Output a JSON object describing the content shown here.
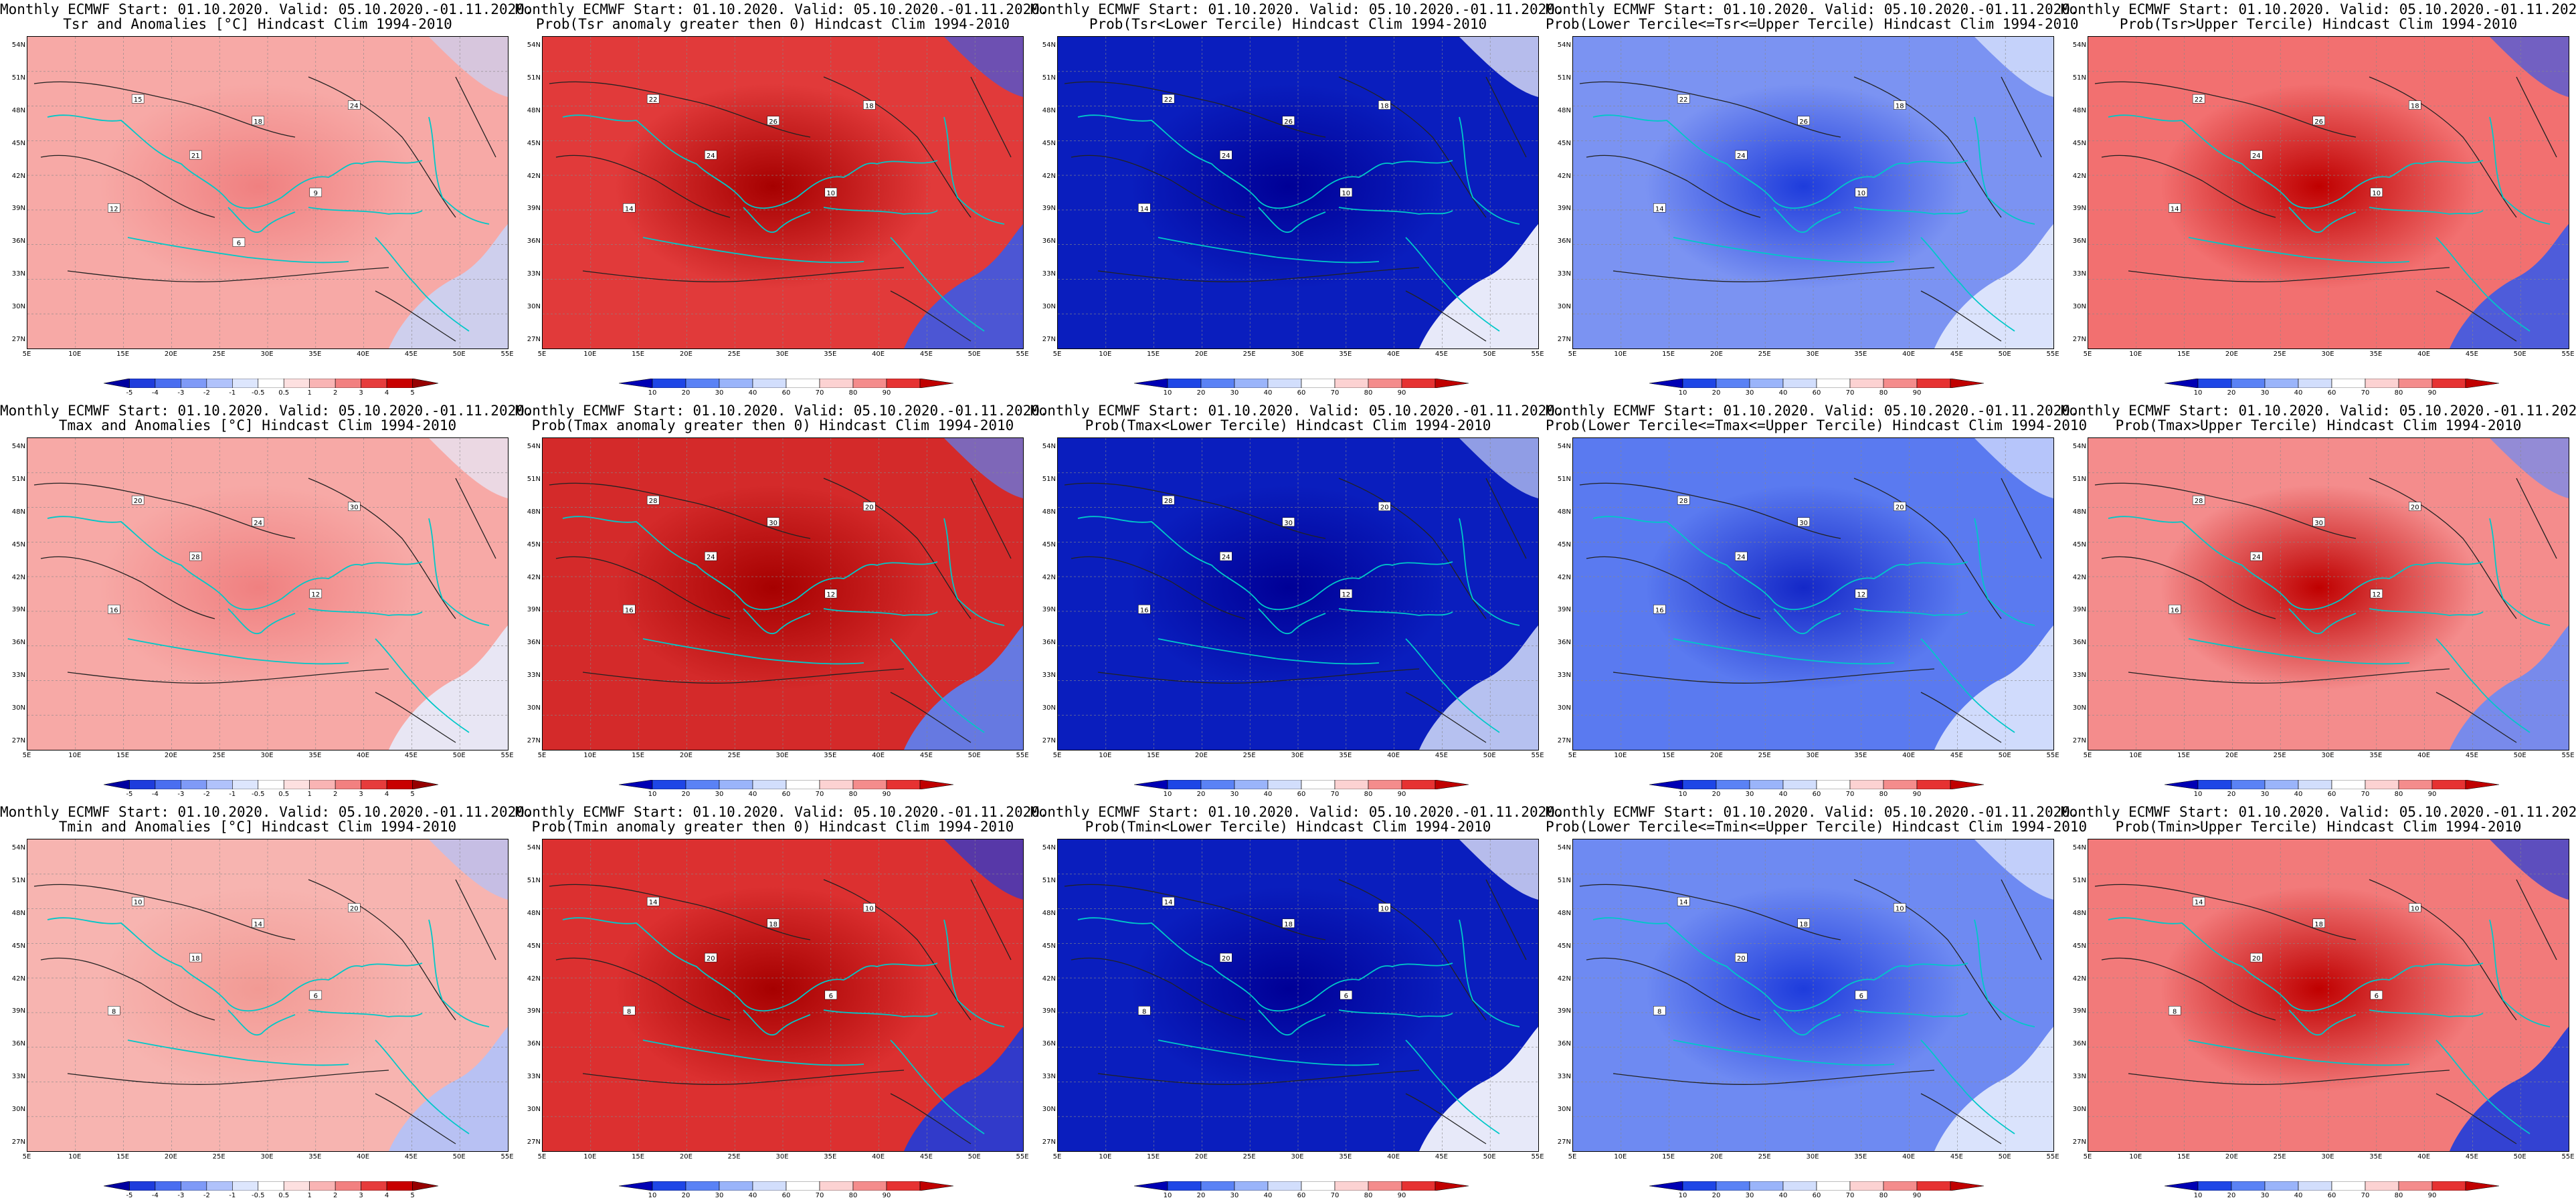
{
  "header_line": "Monthly ECMWF Start: 01.10.2020. Valid: 05.10.2020.-01.11.2020.",
  "lat_labels": [
    "54N",
    "51N",
    "48N",
    "45N",
    "42N",
    "39N",
    "36N",
    "33N",
    "30N",
    "27N"
  ],
  "lon_labels": [
    "5E",
    "10E",
    "15E",
    "20E",
    "25E",
    "30E",
    "35E",
    "40E",
    "45E",
    "50E",
    "55E"
  ],
  "anomaly_scale": {
    "labels": [
      "-5",
      "-4",
      "-3",
      "-2",
      "-1",
      "-0.5",
      "0.5",
      "1",
      "2",
      "3",
      "4",
      "5"
    ],
    "colors": [
      "#0000a0",
      "#1e3cdc",
      "#4a6ef0",
      "#7f9af7",
      "#b0c2fb",
      "#dde6fd",
      "#ffffff",
      "#fde0e0",
      "#f9b4b4",
      "#f28080",
      "#e63c3c",
      "#c80000",
      "#960000"
    ]
  },
  "prob_scale": {
    "labels": [
      "10",
      "20",
      "30",
      "40",
      "60",
      "70",
      "80",
      "90"
    ],
    "colors": [
      "#0000b4",
      "#1e46e6",
      "#5a82f5",
      "#9ab4fa",
      "#d2defc",
      "#ffffff",
      "#fcd2d2",
      "#f48c8c",
      "#e63232",
      "#c00000"
    ]
  },
  "rows": [
    {
      "variable": "Tsr",
      "panels": [
        {
          "title": "Tsr and Anomalies [°C] Hindcast Clim 1994-2010",
          "type": "anomaly",
          "base_color": "#f7a9a6",
          "warm_core_color": "#f08080",
          "cold_edge_color": "#c9d3f5",
          "labels": [
            "15",
            "18",
            "21",
            "24",
            "12",
            "9",
            "6"
          ]
        },
        {
          "title": "Prob(Tsr anomaly greater then 0) Hindcast Clim 1994-2010",
          "type": "prob",
          "base_color": "#e13a3a",
          "warm_core_color": "#a60000",
          "cold_edge_color": "#3c5ae6",
          "labels": [
            "22",
            "26",
            "24",
            "18",
            "14",
            "10"
          ]
        },
        {
          "title": "Prob(Tsr<Lower Tercile) Hindcast Clim 1994-2010",
          "type": "prob",
          "base_color": "#0a1ebe",
          "warm_core_color": "#000096",
          "cold_edge_color": "#ffffff",
          "labels": [
            "22",
            "26",
            "24",
            "18",
            "14",
            "10"
          ]
        },
        {
          "title": "Prob(Lower Tercile<=Tsr<=Upper Tercile) Hindcast Clim 1994-2010",
          "type": "prob",
          "base_color": "#7b93f2",
          "warm_core_color": "#1e3cdc",
          "cold_edge_color": "#e6ecfd",
          "labels": [
            "22",
            "26",
            "24",
            "18",
            "14",
            "10"
          ]
        },
        {
          "title": "Prob(Tsr>Upper Tercile) Hindcast Clim 1994-2010",
          "type": "prob",
          "base_color": "#f27070",
          "warm_core_color": "#c00000",
          "cold_edge_color": "#3c5ae6",
          "labels": [
            "22",
            "26",
            "24",
            "18",
            "14",
            "10"
          ]
        }
      ]
    },
    {
      "variable": "Tmax",
      "panels": [
        {
          "title": "Tmax and Anomalies [°C] Hindcast Clim 1994-2010",
          "type": "anomaly",
          "base_color": "#f7a9a6",
          "warm_core_color": "#f08080",
          "cold_edge_color": "#e6ecfd",
          "labels": [
            "20",
            "24",
            "28",
            "30",
            "16",
            "12"
          ]
        },
        {
          "title": "Prob(Tmax anomaly greater then 0) Hindcast Clim 1994-2010",
          "type": "prob",
          "base_color": "#d42a2a",
          "warm_core_color": "#a60000",
          "cold_edge_color": "#5a82f5",
          "labels": [
            "28",
            "30",
            "24",
            "20",
            "16",
            "12"
          ]
        },
        {
          "title": "Prob(Tmax<Lower Tercile) Hindcast Clim 1994-2010",
          "type": "prob",
          "base_color": "#0a1ebe",
          "warm_core_color": "#000096",
          "cold_edge_color": "#c9d3f5",
          "labels": [
            "28",
            "30",
            "24",
            "20",
            "16",
            "12"
          ]
        },
        {
          "title": "Prob(Lower Tercile<=Tmax<=Upper Tercile) Hindcast Clim 1994-2010",
          "type": "prob",
          "base_color": "#5a7af0",
          "warm_core_color": "#1428c8",
          "cold_edge_color": "#dde6fd",
          "labels": [
            "28",
            "30",
            "24",
            "20",
            "16",
            "12"
          ]
        },
        {
          "title": "Prob(Tmax>Upper Tercile) Hindcast Clim 1994-2010",
          "type": "prob",
          "base_color": "#f48c8c",
          "warm_core_color": "#c00000",
          "cold_edge_color": "#6a8af5",
          "labels": [
            "28",
            "30",
            "24",
            "20",
            "16",
            "12"
          ]
        }
      ]
    },
    {
      "variable": "Tmin",
      "panels": [
        {
          "title": "Tmin and Anomalies [°C] Hindcast Clim 1994-2010",
          "type": "anomaly",
          "base_color": "#f7b4b0",
          "warm_core_color": "#f29a94",
          "cold_edge_color": "#b0c2fb",
          "labels": [
            "10",
            "14",
            "18",
            "20",
            "8",
            "6"
          ]
        },
        {
          "title": "Prob(Tmin anomaly greater then 0) Hindcast Clim 1994-2010",
          "type": "prob",
          "base_color": "#dc3030",
          "warm_core_color": "#a60000",
          "cold_edge_color": "#1e3cdc",
          "labels": [
            "14",
            "18",
            "20",
            "10",
            "8",
            "6"
          ]
        },
        {
          "title": "Prob(Tmin<Lower Tercile) Hindcast Clim 1994-2010",
          "type": "prob",
          "base_color": "#0a1ebe",
          "warm_core_color": "#000096",
          "cold_edge_color": "#ffffff",
          "labels": [
            "14",
            "18",
            "20",
            "10",
            "8",
            "6"
          ]
        },
        {
          "title": "Prob(Lower Tercile<=Tmin<=Upper Tercile) Hindcast Clim 1994-2010",
          "type": "prob",
          "base_color": "#6e8af2",
          "warm_core_color": "#1e3cdc",
          "cold_edge_color": "#e6ecfd",
          "labels": [
            "14",
            "18",
            "20",
            "10",
            "8",
            "6"
          ]
        },
        {
          "title": "Prob(Tmin>Upper Tercile) Hindcast Clim 1994-2010",
          "type": "prob",
          "base_color": "#f27a7a",
          "warm_core_color": "#c00000",
          "cold_edge_color": "#1e3cdc",
          "labels": [
            "14",
            "18",
            "20",
            "10",
            "8",
            "6"
          ]
        }
      ]
    }
  ]
}
